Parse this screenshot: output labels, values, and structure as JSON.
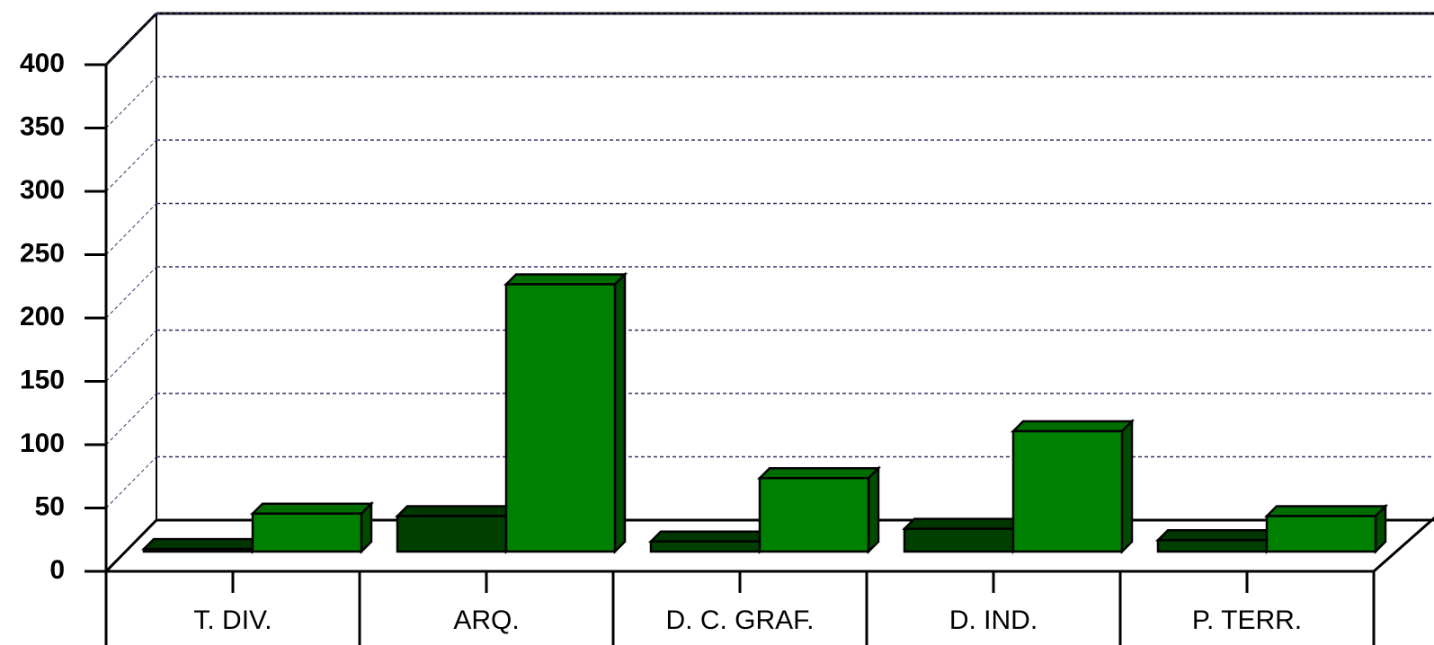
{
  "chart_data": {
    "type": "bar3d",
    "categories": [
      "T. DIV.",
      "ARQ.",
      "D. C. GRAF.",
      "D. IND.",
      "P. TERR."
    ],
    "series": [
      {
        "color": "#004000",
        "values": [
          2,
          28,
          8,
          18,
          9
        ]
      },
      {
        "color": "#008000",
        "values": [
          30,
          211,
          58,
          95,
          28
        ]
      }
    ],
    "ylim": [
      0,
      400
    ],
    "yticks": [
      0,
      50,
      100,
      150,
      200,
      250,
      300,
      350,
      400
    ],
    "grid": true
  }
}
